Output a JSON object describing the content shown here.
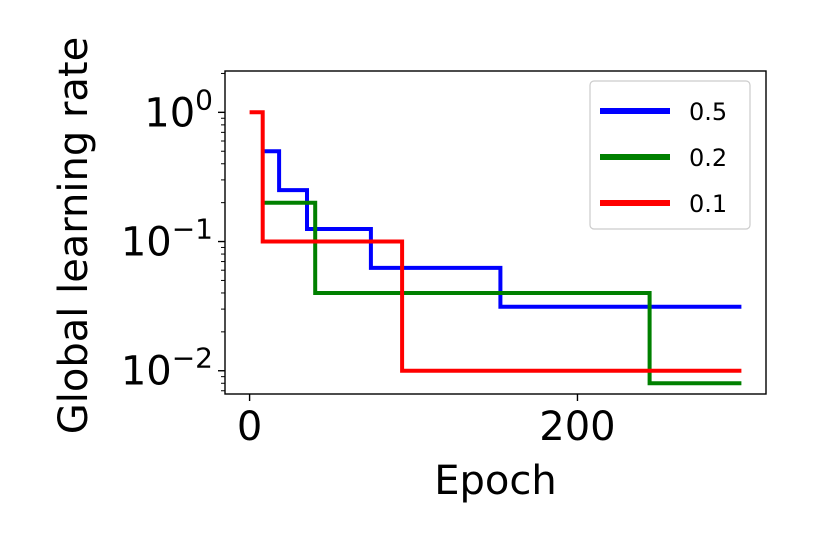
{
  "chart_data": {
    "type": "line",
    "xlabel": "Epoch",
    "ylabel": "Global learning rate",
    "yscale": "log",
    "xlim": [
      -15,
      315
    ],
    "ylim_log10": [
      -2.18,
      0.32
    ],
    "x_ticks": [
      {
        "value": 0,
        "label": "0"
      },
      {
        "value": 200,
        "label": "200"
      }
    ],
    "y_ticks": [
      {
        "exp": 0,
        "base": "10",
        "sup": "0"
      },
      {
        "exp": -1,
        "base": "10",
        "sup": "−1"
      },
      {
        "exp": -2,
        "base": "10",
        "sup": "−2"
      }
    ],
    "legend_position": "upper right",
    "series": [
      {
        "name": "0.5",
        "color": "#0000ff",
        "points": [
          [
            8,
            0.5
          ],
          [
            18,
            0.5
          ],
          [
            18,
            0.25
          ],
          [
            35,
            0.25
          ],
          [
            35,
            0.125
          ],
          [
            74,
            0.125
          ],
          [
            74,
            0.0625
          ],
          [
            153,
            0.0625
          ],
          [
            153,
            0.03125
          ],
          [
            300,
            0.03125
          ]
        ]
      },
      {
        "name": "0.2",
        "color": "#008000",
        "points": [
          [
            8,
            0.2
          ],
          [
            40,
            0.2
          ],
          [
            40,
            0.04
          ],
          [
            244,
            0.04
          ],
          [
            244,
            0.008
          ],
          [
            300,
            0.008
          ]
        ]
      },
      {
        "name": "0.1",
        "color": "#ff0000",
        "points": [
          [
            0,
            1.0
          ],
          [
            8,
            1.0
          ],
          [
            8,
            0.1
          ],
          [
            93,
            0.1
          ],
          [
            93,
            0.01
          ],
          [
            300,
            0.01
          ]
        ]
      }
    ]
  }
}
